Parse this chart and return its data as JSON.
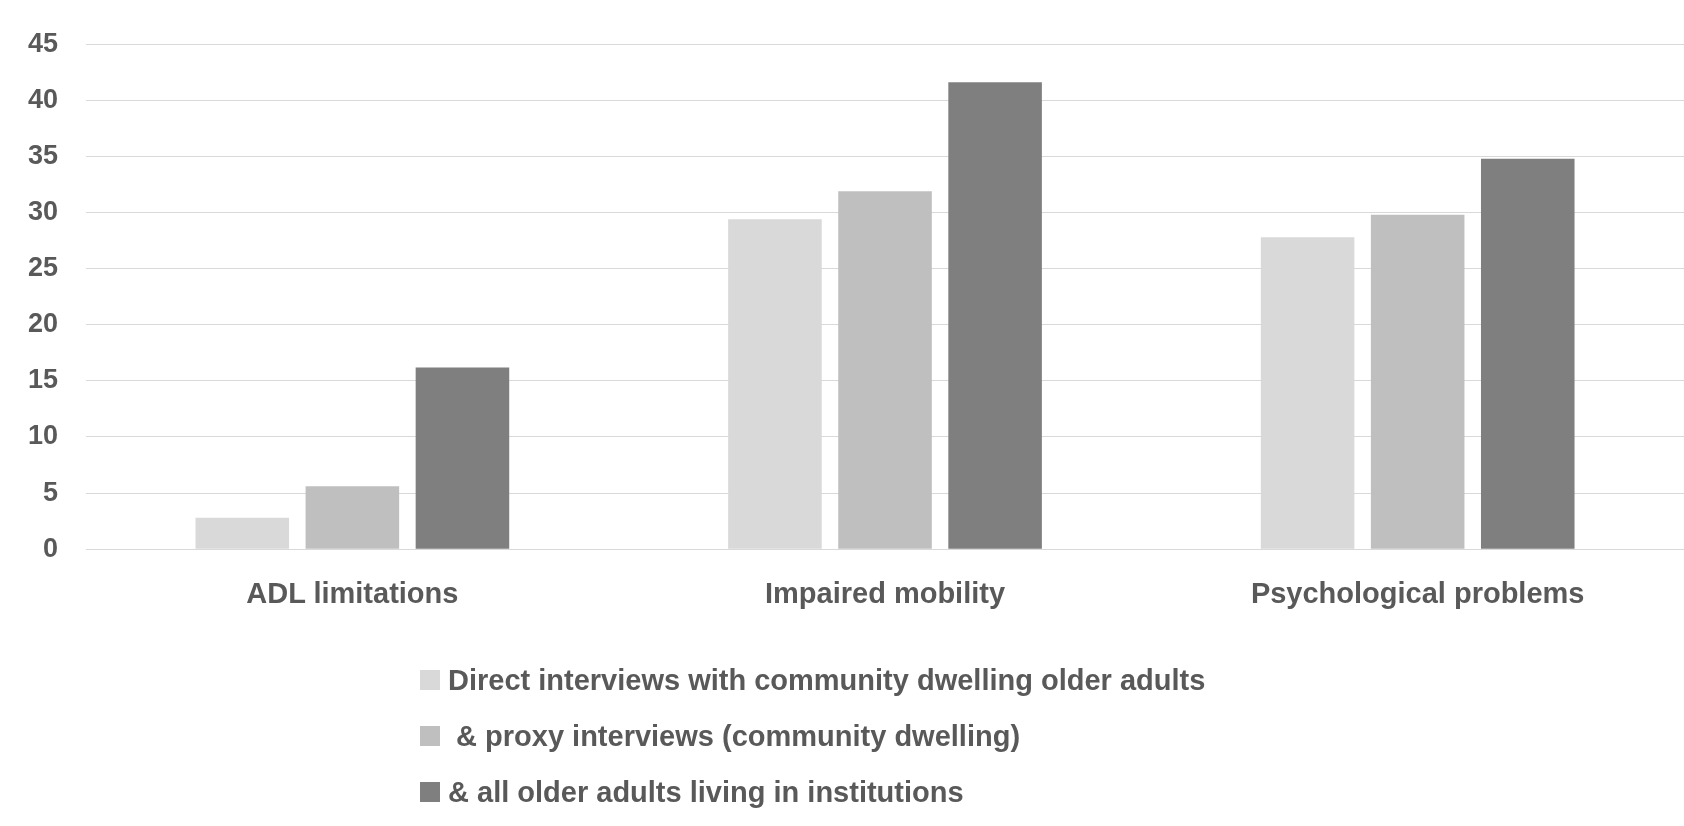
{
  "chart_data": {
    "type": "bar",
    "categories": [
      "ADL limitations",
      "Impaired mobility",
      "Psychological problems"
    ],
    "series": [
      {
        "name": "Direct interviews with community dwelling older adults",
        "color": "#d9d9d9",
        "values": [
          2.8,
          29.4,
          27.8
        ]
      },
      {
        "name": " & proxy interviews (community dwelling)",
        "color": "#bfbfbf",
        "values": [
          5.6,
          31.9,
          29.8
        ]
      },
      {
        "name": "& all older adults living in institutions",
        "color": "#7f7f7f",
        "values": [
          16.2,
          41.6,
          34.8
        ]
      }
    ],
    "ylim": [
      0,
      45
    ],
    "yticks": [
      0,
      5,
      10,
      15,
      20,
      25,
      30,
      35,
      40,
      45
    ],
    "grid": "y",
    "legend": "bottom"
  }
}
